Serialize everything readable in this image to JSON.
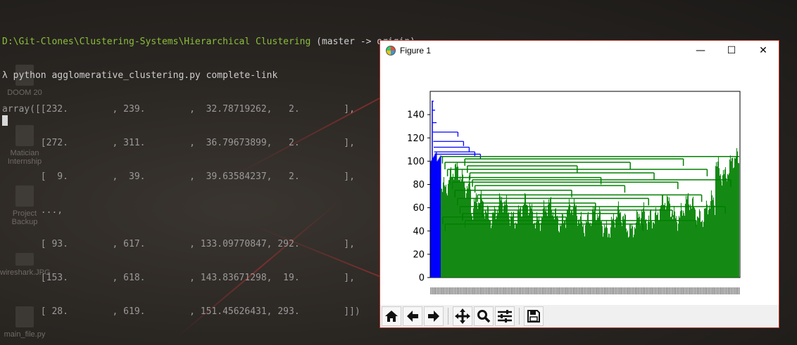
{
  "desktop": {
    "icons": [
      {
        "label": "DOOM 20"
      },
      {
        "label": "Matician Internship"
      },
      {
        "label": "Project Backup"
      },
      {
        "label": "wireshark.JPG"
      },
      {
        "label": "main_file.py"
      }
    ]
  },
  "terminal": {
    "prompt_path": "D:\\Git-Clones\\Clustering-Systems\\Hierarchical Clustering",
    "branch": " (master -> origin)",
    "command": "λ python agglomerative_clustering.py complete-link",
    "output": [
      "array([[232.        , 239.        ,  32.78719262,   2.        ],",
      "       [272.        , 311.        ,  36.79673899,   2.        ],",
      "       [  9.        ,  39.        ,  39.63584237,   2.        ],",
      "       ...,",
      "       [ 93.        , 617.        , 133.09770847, 292.        ],",
      "       [153.        , 618.        , 143.83671298,  19.        ],",
      "       [ 28.        , 619.        , 151.45626431, 293.        ]])"
    ]
  },
  "figure": {
    "title": "Figure 1",
    "window_buttons": {
      "minimize": "—",
      "maximize": "☐",
      "close": "✕"
    },
    "toolbar": {
      "home": "home-icon",
      "back": "arrow-left-icon",
      "forward": "arrow-right-icon",
      "pan": "move-icon",
      "zoom": "magnifier-icon",
      "configure": "sliders-icon",
      "save": "floppy-icon"
    }
  },
  "chart_data": {
    "type": "dendrogram",
    "ylim": [
      0,
      160
    ],
    "yticks": [
      0,
      20,
      40,
      60,
      80,
      100,
      120,
      140
    ],
    "clusters": [
      {
        "name": "",
        "color": "#0000ff",
        "root_height": 151.45626431,
        "share": 0.035
      },
      {
        "name": "",
        "color": "#008000",
        "root_height": 104,
        "share": 0.965
      }
    ],
    "top_merge_height": 151.45626431,
    "blue_merges": [
      151.5,
      143.8,
      133.1,
      125,
      117,
      112,
      108,
      106
    ],
    "green_merges": [
      104,
      102,
      99,
      96,
      93,
      90,
      86,
      84,
      82,
      79,
      75,
      71,
      68,
      64,
      61,
      58,
      55,
      52,
      49,
      46
    ],
    "grid": false,
    "legend": "none"
  }
}
